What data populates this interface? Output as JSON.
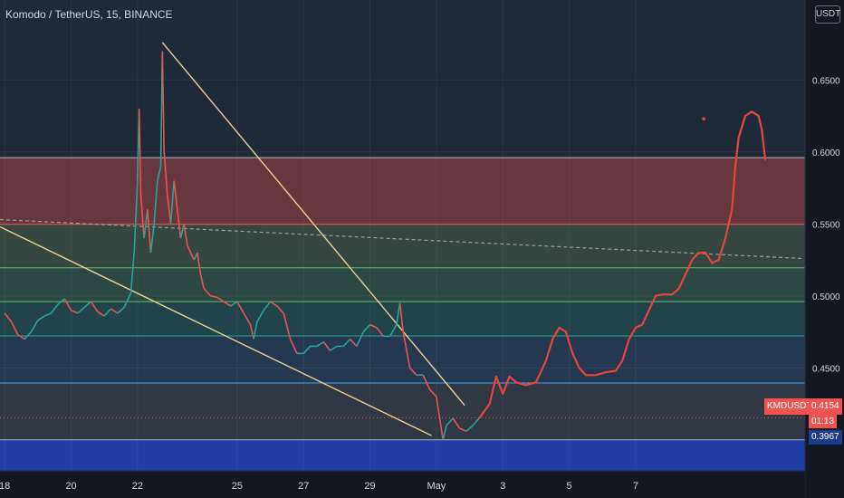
{
  "title": "Komodo / TetherUS, 15, BINANCE",
  "unit": "USDT",
  "symbol_tag": "KMDUSDT",
  "price_tag": "0.4154",
  "countdown": "01:13",
  "low_tag": "0.3967",
  "colors": {
    "background": "#131722",
    "up": "#26a69a",
    "down": "#ef5350",
    "drawing": "#e8463c",
    "trendline": "#f0d090"
  },
  "chart_data": {
    "type": "line",
    "y_axis": {
      "range": [
        0.3785,
        0.7055
      ],
      "ticks": [
        0.45,
        0.5,
        0.55,
        0.6,
        0.65
      ]
    },
    "x_axis": {
      "ticks": [
        {
          "label": "18",
          "x": 0
        },
        {
          "label": "20",
          "x": 2
        },
        {
          "label": "22",
          "x": 4
        },
        {
          "label": "25",
          "x": 7
        },
        {
          "label": "27",
          "x": 9
        },
        {
          "label": "29",
          "x": 11
        },
        {
          "label": "May",
          "x": 13
        },
        {
          "label": "3",
          "x": 15
        },
        {
          "label": "5",
          "x": 17
        },
        {
          "label": "7",
          "x": 19
        }
      ],
      "range": [
        -0.14,
        24.1
      ]
    },
    "zones": [
      {
        "from": 0.5497,
        "to": 0.596,
        "color": "rgba(239,83,80,0.34)"
      },
      {
        "from": 0.5195,
        "to": 0.5497,
        "color": "rgba(120,150,90,0.26)"
      },
      {
        "from": 0.496,
        "to": 0.5195,
        "color": "rgba(80,160,110,0.26)"
      },
      {
        "from": 0.4722,
        "to": 0.496,
        "color": "rgba(40,150,130,0.24)"
      },
      {
        "from": 0.4395,
        "to": 0.4722,
        "color": "rgba(60,120,180,0.20)"
      },
      {
        "from": 0.4,
        "to": 0.4395,
        "color": "rgba(110,110,110,0.22)"
      },
      {
        "from": 0.3785,
        "to": 0.4,
        "color": "rgba(33,70,200,0.75)"
      }
    ],
    "levels": [
      {
        "value": 0.596,
        "color": "#b2b5be"
      },
      {
        "value": 0.5497,
        "color": "#ef5350"
      },
      {
        "value": 0.5195,
        "color": "#66bb6a"
      },
      {
        "value": 0.496,
        "color": "#66bb6a"
      },
      {
        "value": 0.4722,
        "color": "#26a69a"
      },
      {
        "value": 0.4395,
        "color": "#42a5f5"
      },
      {
        "value": 0.4,
        "color": "#b2b5be"
      }
    ],
    "price_line": 0.4154,
    "dashed_line": [
      [
        -0.14,
        0.553
      ],
      [
        24.0,
        0.526
      ]
    ],
    "trendlines": [
      [
        [
          4.75,
          0.676
        ],
        [
          13.85,
          0.424
        ]
      ],
      [
        [
          -0.14,
          0.548
        ],
        [
          12.85,
          0.403
        ]
      ]
    ],
    "price_series": [
      [
        0.0,
        0.488
      ],
      [
        0.2,
        0.482
      ],
      [
        0.4,
        0.473
      ],
      [
        0.6,
        0.47
      ],
      [
        0.8,
        0.475
      ],
      [
        1.0,
        0.483
      ],
      [
        1.2,
        0.486
      ],
      [
        1.4,
        0.488
      ],
      [
        1.6,
        0.494
      ],
      [
        1.8,
        0.498
      ],
      [
        2.0,
        0.49
      ],
      [
        2.2,
        0.488
      ],
      [
        2.4,
        0.492
      ],
      [
        2.6,
        0.496
      ],
      [
        2.8,
        0.489
      ],
      [
        3.0,
        0.486
      ],
      [
        3.2,
        0.491
      ],
      [
        3.4,
        0.488
      ],
      [
        3.6,
        0.492
      ],
      [
        3.8,
        0.502
      ],
      [
        3.9,
        0.53
      ],
      [
        4.0,
        0.58
      ],
      [
        4.05,
        0.63
      ],
      [
        4.1,
        0.57
      ],
      [
        4.2,
        0.54
      ],
      [
        4.3,
        0.56
      ],
      [
        4.4,
        0.53
      ],
      [
        4.5,
        0.55
      ],
      [
        4.6,
        0.58
      ],
      [
        4.7,
        0.59
      ],
      [
        4.75,
        0.67
      ],
      [
        4.8,
        0.6
      ],
      [
        4.9,
        0.57
      ],
      [
        5.0,
        0.55
      ],
      [
        5.1,
        0.58
      ],
      [
        5.2,
        0.56
      ],
      [
        5.3,
        0.54
      ],
      [
        5.4,
        0.55
      ],
      [
        5.5,
        0.535
      ],
      [
        5.6,
        0.53
      ],
      [
        5.7,
        0.525
      ],
      [
        5.8,
        0.53
      ],
      [
        5.9,
        0.515
      ],
      [
        6.0,
        0.505
      ],
      [
        6.2,
        0.5
      ],
      [
        6.4,
        0.499
      ],
      [
        6.6,
        0.496
      ],
      [
        6.8,
        0.493
      ],
      [
        7.0,
        0.496
      ],
      [
        7.2,
        0.488
      ],
      [
        7.4,
        0.48
      ],
      [
        7.5,
        0.47
      ],
      [
        7.6,
        0.482
      ],
      [
        7.8,
        0.49
      ],
      [
        8.0,
        0.496
      ],
      [
        8.2,
        0.493
      ],
      [
        8.4,
        0.488
      ],
      [
        8.6,
        0.47
      ],
      [
        8.8,
        0.46
      ],
      [
        9.0,
        0.46
      ],
      [
        9.2,
        0.465
      ],
      [
        9.4,
        0.465
      ],
      [
        9.6,
        0.468
      ],
      [
        9.8,
        0.462
      ],
      [
        10.0,
        0.465
      ],
      [
        10.2,
        0.465
      ],
      [
        10.4,
        0.47
      ],
      [
        10.6,
        0.465
      ],
      [
        10.8,
        0.475
      ],
      [
        11.0,
        0.48
      ],
      [
        11.2,
        0.478
      ],
      [
        11.4,
        0.472
      ],
      [
        11.6,
        0.472
      ],
      [
        11.8,
        0.48
      ],
      [
        11.9,
        0.495
      ],
      [
        12.0,
        0.475
      ],
      [
        12.2,
        0.45
      ],
      [
        12.4,
        0.445
      ],
      [
        12.6,
        0.445
      ],
      [
        12.8,
        0.435
      ],
      [
        13.0,
        0.43
      ],
      [
        13.1,
        0.415
      ],
      [
        13.2,
        0.4
      ],
      [
        13.3,
        0.41
      ],
      [
        13.5,
        0.415
      ],
      [
        13.7,
        0.408
      ],
      [
        13.9,
        0.406
      ],
      [
        14.1,
        0.41
      ],
      [
        14.3,
        0.4154
      ]
    ],
    "projection": [
      [
        14.3,
        0.4154
      ],
      [
        14.6,
        0.425
      ],
      [
        14.8,
        0.444
      ],
      [
        14.9,
        0.438
      ],
      [
        15.0,
        0.432
      ],
      [
        15.2,
        0.444
      ],
      [
        15.4,
        0.44
      ],
      [
        15.7,
        0.438
      ],
      [
        16.0,
        0.44
      ],
      [
        16.3,
        0.455
      ],
      [
        16.5,
        0.47
      ],
      [
        16.7,
        0.478
      ],
      [
        16.9,
        0.475
      ],
      [
        17.1,
        0.46
      ],
      [
        17.3,
        0.45
      ],
      [
        17.5,
        0.445
      ],
      [
        17.8,
        0.445
      ],
      [
        18.1,
        0.447
      ],
      [
        18.4,
        0.448
      ],
      [
        18.6,
        0.455
      ],
      [
        18.8,
        0.47
      ],
      [
        19.0,
        0.478
      ],
      [
        19.2,
        0.48
      ],
      [
        19.4,
        0.49
      ],
      [
        19.6,
        0.5
      ],
      [
        19.8,
        0.501
      ],
      [
        20.1,
        0.501
      ],
      [
        20.3,
        0.505
      ],
      [
        20.5,
        0.515
      ],
      [
        20.7,
        0.525
      ],
      [
        20.9,
        0.53
      ],
      [
        21.1,
        0.53
      ],
      [
        21.3,
        0.523
      ],
      [
        21.5,
        0.525
      ],
      [
        21.7,
        0.54
      ],
      [
        21.9,
        0.56
      ],
      [
        22.0,
        0.59
      ],
      [
        22.1,
        0.61
      ],
      [
        22.3,
        0.625
      ],
      [
        22.5,
        0.628
      ],
      [
        22.7,
        0.625
      ],
      [
        22.8,
        0.615
      ],
      [
        22.9,
        0.595
      ]
    ],
    "marker_point": [
      21.05,
      0.623
    ]
  }
}
